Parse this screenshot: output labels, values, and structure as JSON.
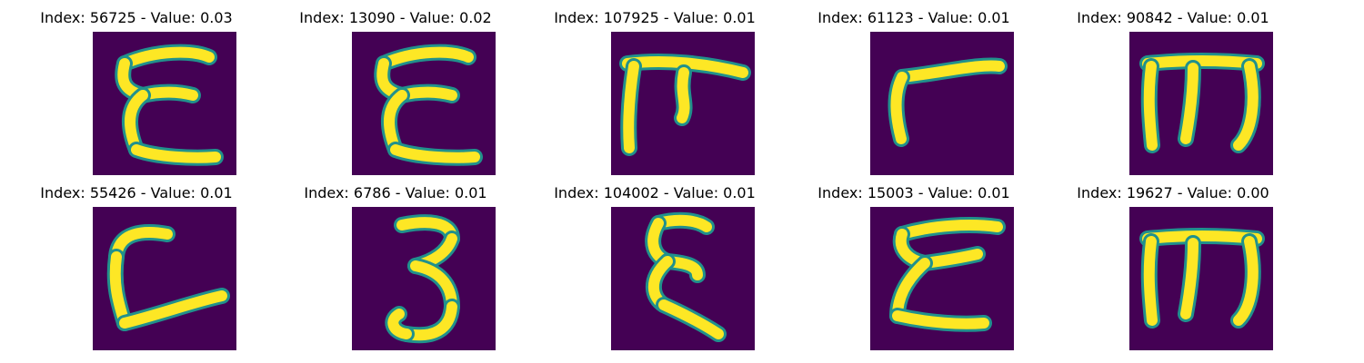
{
  "colors": {
    "background": "#440154",
    "stroke_core": "#fde725",
    "stroke_edge": "#21918c"
  },
  "panels": [
    {
      "index": "56725",
      "value": "0.03",
      "title": "Index: 56725 - Value: 0.03",
      "glyph": "E-like"
    },
    {
      "index": "13090",
      "value": "0.02",
      "title": "Index: 13090 - Value: 0.02",
      "glyph": "E-like"
    },
    {
      "index": "107925",
      "value": "0.01",
      "title": "Index: 107925 - Value: 0.01",
      "glyph": "pi-like"
    },
    {
      "index": "61123",
      "value": "0.01",
      "title": "Index: 61123 - Value: 0.01",
      "glyph": "gamma-like"
    },
    {
      "index": "90842",
      "value": "0.01",
      "title": "Index: 90842 - Value: 0.01",
      "glyph": "m-like"
    },
    {
      "index": "55426",
      "value": "0.01",
      "title": "Index: 55426 - Value: 0.01",
      "glyph": "L-like"
    },
    {
      "index": "6786",
      "value": "0.01",
      "title": "Index: 6786 - Value: 0.01",
      "glyph": "3-like"
    },
    {
      "index": "104002",
      "value": "0.01",
      "title": "Index: 104002 - Value: 0.01",
      "glyph": "xi-like"
    },
    {
      "index": "15003",
      "value": "0.01",
      "title": "Index: 15003 - Value: 0.01",
      "glyph": "sigma-like"
    },
    {
      "index": "19627",
      "value": "0.00",
      "title": "Index: 19627 - Value: 0.00",
      "glyph": "m-like"
    }
  ]
}
